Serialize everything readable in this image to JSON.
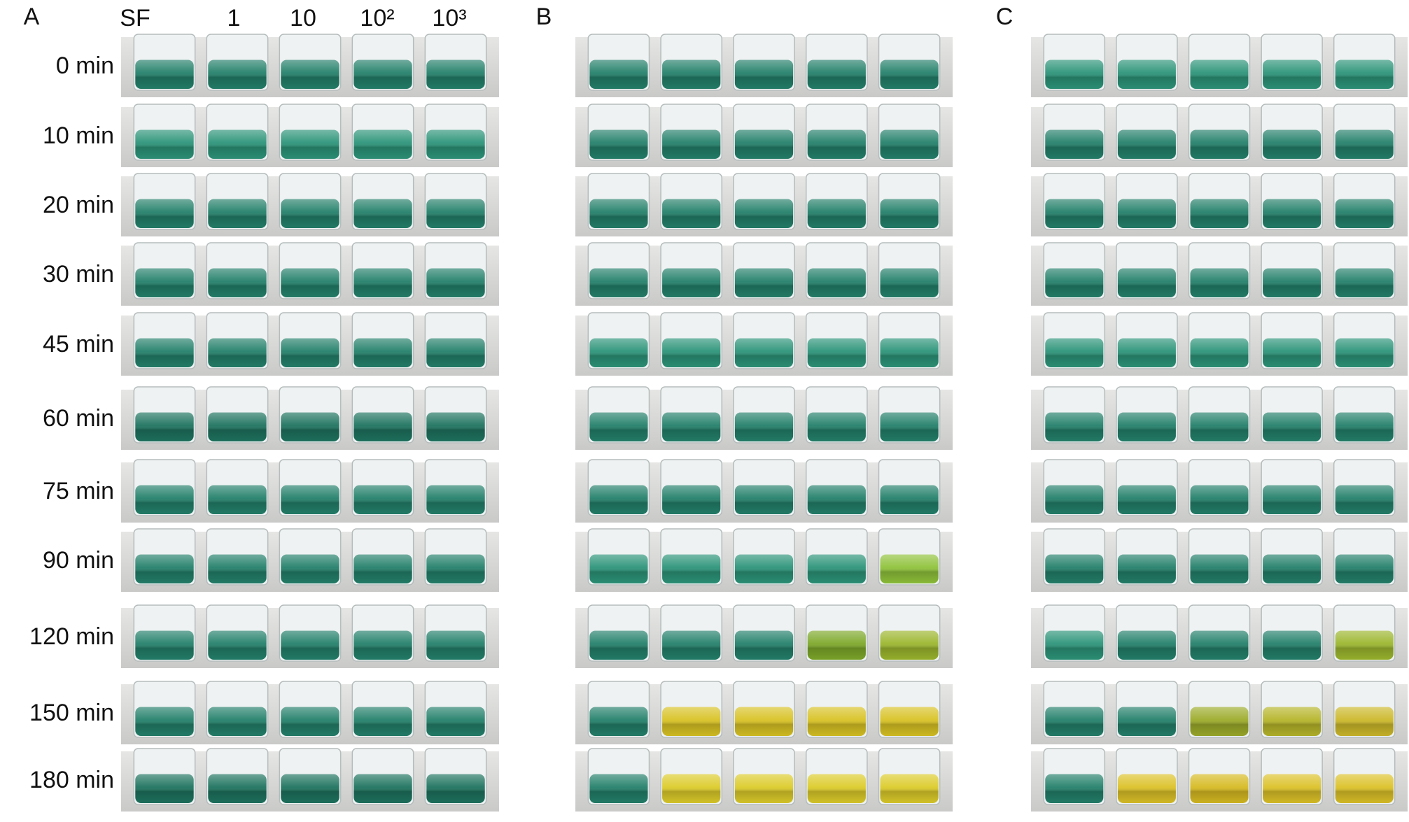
{
  "column_headers": [
    "SF",
    "1",
    "10",
    "10²",
    "10³"
  ],
  "row_labels": [
    "0 min",
    "10 min",
    "20 min",
    "30 min",
    "45 min",
    "60 min",
    "75 min",
    "90 min",
    "120 min",
    "150 min",
    "180 min"
  ],
  "panels": [
    {
      "label": "A",
      "liquid_colors": [
        [
          "#23806a",
          "#23806a",
          "#23806a",
          "#23806a",
          "#23806a"
        ],
        [
          "#2c9479",
          "#2c9479",
          "#2c9479",
          "#2c9479",
          "#2c9479"
        ],
        [
          "#23806a",
          "#23806a",
          "#23806a",
          "#23806a",
          "#23806a"
        ],
        [
          "#23806a",
          "#23806a",
          "#23806a",
          "#23806a",
          "#23806a"
        ],
        [
          "#23806a",
          "#23806a",
          "#23806a",
          "#23806a",
          "#23806a"
        ],
        [
          "#1e735f",
          "#1e735f",
          "#1e735f",
          "#1e735f",
          "#1e735f"
        ],
        [
          "#23806a",
          "#23806a",
          "#23806a",
          "#23806a",
          "#23806a"
        ],
        [
          "#23806a",
          "#23806a",
          "#23806a",
          "#23806a",
          "#23806a"
        ],
        [
          "#23806a",
          "#23806a",
          "#23806a",
          "#23806a",
          "#23806a"
        ],
        [
          "#23806a",
          "#23806a",
          "#23806a",
          "#23806a",
          "#23806a"
        ],
        [
          "#1e735f",
          "#1e735f",
          "#1e735f",
          "#1e735f",
          "#1e735f"
        ]
      ]
    },
    {
      "label": "B",
      "liquid_colors": [
        [
          "#23806a",
          "#23806a",
          "#23806a",
          "#23806a",
          "#23806a"
        ],
        [
          "#23806a",
          "#23806a",
          "#23806a",
          "#23806a",
          "#23806a"
        ],
        [
          "#23806a",
          "#23806a",
          "#23806a",
          "#23806a",
          "#23806a"
        ],
        [
          "#23806a",
          "#23806a",
          "#23806a",
          "#23806a",
          "#23806a"
        ],
        [
          "#2c9479",
          "#2c9479",
          "#2c9479",
          "#2c9479",
          "#2c9479"
        ],
        [
          "#23806a",
          "#23806a",
          "#23806a",
          "#23806a",
          "#23806a"
        ],
        [
          "#23806a",
          "#23806a",
          "#23806a",
          "#23806a",
          "#23806a"
        ],
        [
          "#2c9479",
          "#2c9479",
          "#2c9479",
          "#2c9479",
          "#8fc23a"
        ],
        [
          "#23806a",
          "#23806a",
          "#23806a",
          "#7ea82a",
          "#9cb62e"
        ],
        [
          "#23806a",
          "#d8c224",
          "#d8c224",
          "#d8c224",
          "#d8c224"
        ],
        [
          "#23806a",
          "#dccb2a",
          "#dccb2a",
          "#dccb2a",
          "#dccb2a"
        ]
      ]
    },
    {
      "label": "C",
      "liquid_colors": [
        [
          "#2c9479",
          "#2c9479",
          "#2c9479",
          "#2c9479",
          "#2c9479"
        ],
        [
          "#23806a",
          "#23806a",
          "#23806a",
          "#23806a",
          "#23806a"
        ],
        [
          "#23806a",
          "#23806a",
          "#23806a",
          "#23806a",
          "#23806a"
        ],
        [
          "#23806a",
          "#23806a",
          "#23806a",
          "#23806a",
          "#23806a"
        ],
        [
          "#2c9479",
          "#2c9479",
          "#2c9479",
          "#2c9479",
          "#2c9479"
        ],
        [
          "#23806a",
          "#23806a",
          "#23806a",
          "#23806a",
          "#23806a"
        ],
        [
          "#23806a",
          "#23806a",
          "#23806a",
          "#23806a",
          "#23806a"
        ],
        [
          "#23806a",
          "#23806a",
          "#23806a",
          "#23806a",
          "#23806a"
        ],
        [
          "#2c9479",
          "#23806a",
          "#23806a",
          "#23806a",
          "#9cb62e"
        ],
        [
          "#23806a",
          "#23806a",
          "#9cab2a",
          "#b6b52a",
          "#ccb82a"
        ],
        [
          "#23806a",
          "#dcc128",
          "#d6ba22",
          "#dcc128",
          "#dcc128"
        ]
      ]
    }
  ]
}
